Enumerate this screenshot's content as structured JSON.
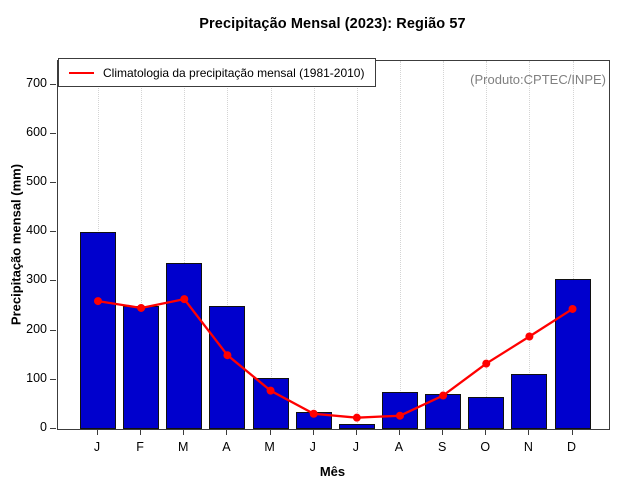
{
  "title": "Precipitação Mensal (2023): Região 57",
  "legend": {
    "label": "Climatologia da precipitação mensal (1981-2010)"
  },
  "annotation": "(Produto:CPTEC/INPE)",
  "colors": {
    "bar_fill": "#0000CD",
    "bar_border": "#101010",
    "line": "#FF0000",
    "grid": "#d4d4d4",
    "frame": "#3c3c3c",
    "annotation_text": "#808080"
  },
  "chart_data": {
    "type": "bar",
    "title": "Precipitação Mensal (2023): Região 57",
    "xlabel": "Mês",
    "ylabel": "Precipitação mensal (mm)",
    "categories": [
      "J",
      "F",
      "M",
      "A",
      "M",
      "J",
      "J",
      "A",
      "S",
      "O",
      "N",
      "D"
    ],
    "series": [
      {
        "name": "Precipitação mensal 2023",
        "type": "bar",
        "color": "#0000CD",
        "values": [
          400,
          250,
          338,
          250,
          104,
          35,
          10,
          75,
          71,
          66,
          112,
          304
        ]
      },
      {
        "name": "Climatologia da precipitação mensal (1981-2010)",
        "type": "line",
        "color": "#FF0000",
        "values": [
          260,
          246,
          264,
          150,
          78,
          31,
          23,
          27,
          68,
          133,
          188,
          244
        ]
      }
    ],
    "ylim": [
      0,
      700
    ],
    "yticks": [
      0,
      100,
      200,
      300,
      400,
      500,
      600,
      700
    ],
    "grid": "vertical-dotted",
    "legend_position": "top-left-inside"
  }
}
